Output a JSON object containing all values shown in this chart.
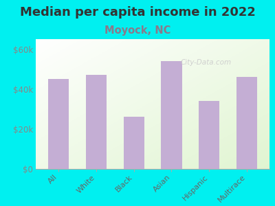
{
  "title": "Median per capita income in 2022",
  "subtitle": "Moyock, NC",
  "categories": [
    "All",
    "White",
    "Black",
    "Asian",
    "Hispanic",
    "Multirace"
  ],
  "values": [
    45000,
    47000,
    26000,
    54000,
    34000,
    46000
  ],
  "bar_color": "#c4aed4",
  "title_fontsize": 13,
  "subtitle_fontsize": 10.5,
  "subtitle_color": "#8a7a8a",
  "title_color": "#333333",
  "background_color": "#00f0f0",
  "plot_bg_topleft": "#f5fff5",
  "plot_bg_bottomright": "#e8f5d0",
  "ylabel_ticks": [
    0,
    20000,
    40000,
    60000
  ],
  "ylabel_labels": [
    "$0",
    "$20k",
    "$40k",
    "$60k"
  ],
  "ylim": [
    0,
    65000
  ],
  "watermark": "City-Data.com",
  "tick_color": "#888888",
  "xlabel_color": "#666666"
}
